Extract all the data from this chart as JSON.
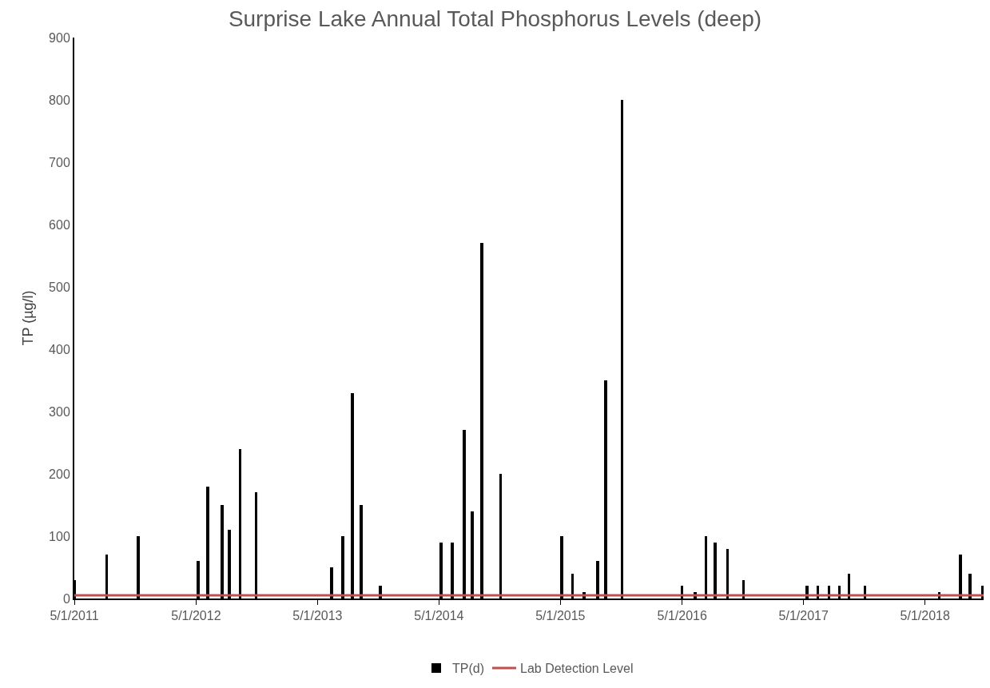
{
  "chart_data": {
    "type": "bar",
    "title": "Surprise Lake Annual Total Phosphorus Levels (deep)",
    "ylabel": "TP (µg/l)",
    "x": [
      "2011-05-02",
      "2011-08-07",
      "2011-11-09",
      "2012-05-07",
      "2012-06-05",
      "2012-07-18",
      "2012-08-09",
      "2012-09-11",
      "2012-10-29",
      "2013-06-12",
      "2013-07-16",
      "2013-08-14",
      "2013-09-09",
      "2013-11-06",
      "2014-05-07",
      "2014-06-10",
      "2014-07-16",
      "2014-08-09",
      "2014-09-07",
      "2014-11-03",
      "2015-05-05",
      "2015-06-07",
      "2015-07-11",
      "2015-08-21",
      "2015-09-14",
      "2015-11-03",
      "2016-05-01",
      "2016-06-09",
      "2016-07-12",
      "2016-08-08",
      "2016-09-15",
      "2016-11-02",
      "2017-05-11",
      "2017-06-13",
      "2017-07-17",
      "2017-08-17",
      "2017-09-15",
      "2017-11-02",
      "2018-06-13",
      "2018-08-15",
      "2018-09-13",
      "2018-10-21"
    ],
    "series": [
      {
        "name": "TP(d)",
        "color": "#000000",
        "values": [
          30,
          70,
          100,
          60,
          180,
          150,
          110,
          240,
          170,
          50,
          100,
          330,
          150,
          20,
          90,
          90,
          270,
          140,
          570,
          200,
          100,
          40,
          10,
          60,
          350,
          800,
          20,
          10,
          100,
          90,
          80,
          30,
          20,
          20,
          20,
          20,
          40,
          20,
          10,
          70,
          40,
          20
        ]
      }
    ],
    "xlim": [
      "2011-05-01",
      "2018-10-24"
    ],
    "xticks": [
      {
        "value": "2011-05-01",
        "label": "5/1/2011"
      },
      {
        "value": "2012-05-01",
        "label": "5/1/2012"
      },
      {
        "value": "2013-05-01",
        "label": "5/1/2013"
      },
      {
        "value": "2014-05-01",
        "label": "5/1/2014"
      },
      {
        "value": "2015-05-01",
        "label": "5/1/2015"
      },
      {
        "value": "2016-05-01",
        "label": "5/1/2016"
      },
      {
        "value": "2017-05-01",
        "label": "5/1/2017"
      },
      {
        "value": "2018-05-01",
        "label": "5/1/2018"
      }
    ],
    "ylim": [
      0,
      900
    ],
    "yticks": [
      0,
      100,
      200,
      300,
      400,
      500,
      600,
      700,
      800,
      900
    ],
    "ref_lines": [
      {
        "axis": "y",
        "value": 5,
        "label": "Lab Detection Level",
        "color": "#c0504d",
        "line_style": "solid"
      }
    ],
    "legend": "bottom"
  }
}
